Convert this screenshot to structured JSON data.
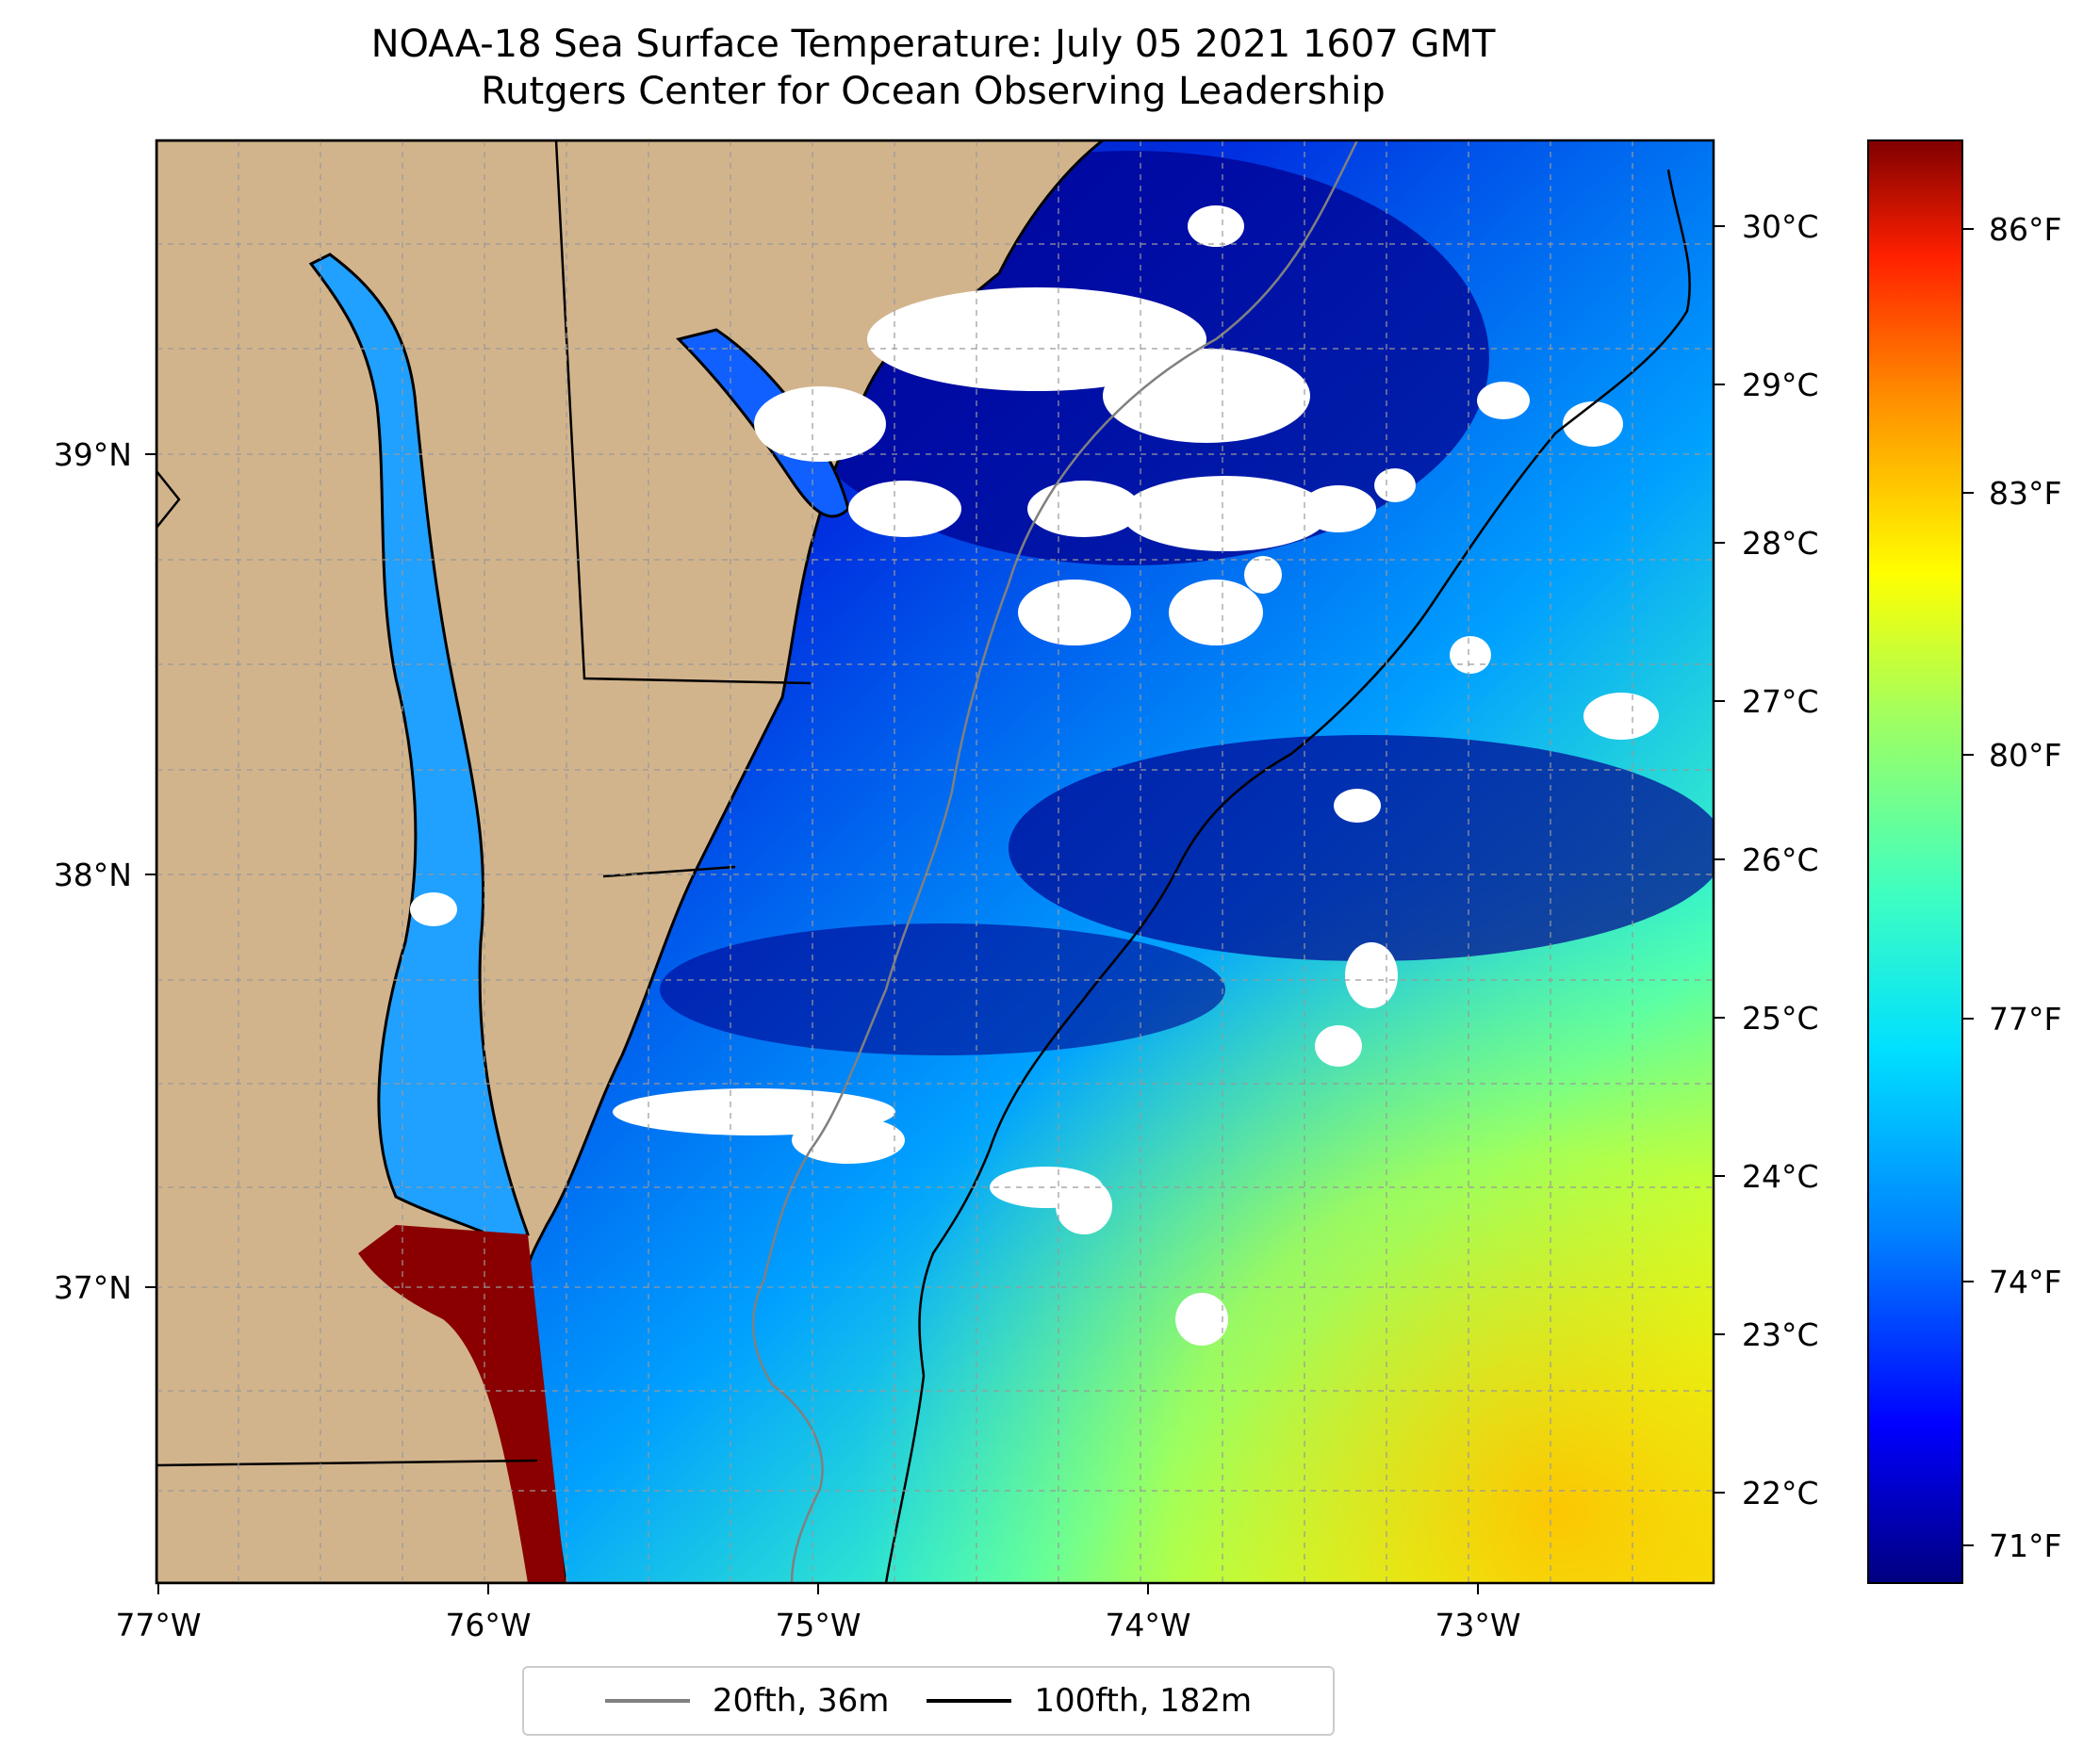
{
  "title": {
    "line1": "NOAA-18 Sea Surface Temperature: July 05 2021 1607 GMT",
    "line2": "Rutgers Center for Ocean Observing Leadership"
  },
  "map": {
    "longitude_ticks": [
      "77°W",
      "76°W",
      "75°W",
      "74°W",
      "73°W"
    ],
    "latitude_ticks": [
      "39°N",
      "38°N",
      "37°N"
    ],
    "celsius_ticks": [
      "30°C",
      "29°C",
      "28°C",
      "27°C",
      "26°C",
      "25°C",
      "24°C",
      "23°C",
      "22°C"
    ],
    "colors": {
      "land": "#d2b48c",
      "cloud": "#ffffff",
      "contour_20fth": "#808080",
      "contour_100fth": "#000000",
      "gridline": "#999999"
    }
  },
  "colorbar": {
    "fahrenheit_ticks": [
      "86°F",
      "83°F",
      "80°F",
      "77°F",
      "74°F",
      "71°F"
    ],
    "palette": [
      "#000080",
      "#0000ff",
      "#0080ff",
      "#00e0ff",
      "#40ffc0",
      "#a0ff60",
      "#ffff00",
      "#ff9000",
      "#ff2000",
      "#800000"
    ]
  },
  "legend": {
    "entries": [
      {
        "label": "20fth, 36m",
        "color": "#808080"
      },
      {
        "label": "100fth, 182m",
        "color": "#000000"
      }
    ]
  }
}
